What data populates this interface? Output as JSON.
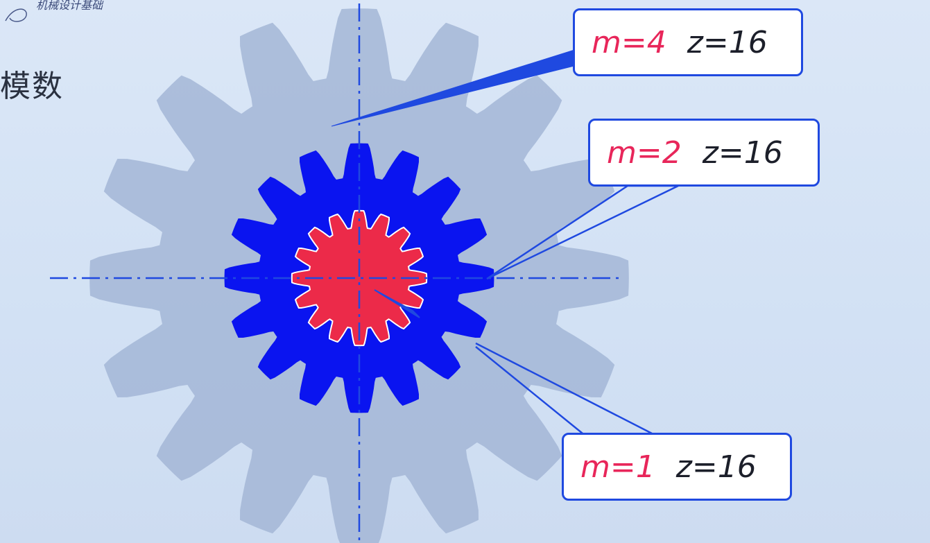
{
  "header": {
    "logo_text": "机械设计基础",
    "heading": "模数"
  },
  "gears": [
    {
      "module": 4,
      "teeth": 16,
      "color": "#a3b6d6",
      "role": "large"
    },
    {
      "module": 2,
      "teeth": 16,
      "color": "#0a14f0",
      "role": "medium"
    },
    {
      "module": 1,
      "teeth": 16,
      "color": "#ec2a49",
      "role": "small"
    }
  ],
  "callouts": [
    {
      "m_label": "m=4",
      "z_label": "z=16"
    },
    {
      "m_label": "m=2",
      "z_label": "z=16"
    },
    {
      "m_label": "m=1",
      "z_label": "z=16"
    }
  ],
  "colors": {
    "background": "#d5e3f5",
    "centerline": "#1f49e0",
    "callout_border": "#1f49e0",
    "m_text": "#e8265a",
    "z_text": "#1c1f2a"
  }
}
